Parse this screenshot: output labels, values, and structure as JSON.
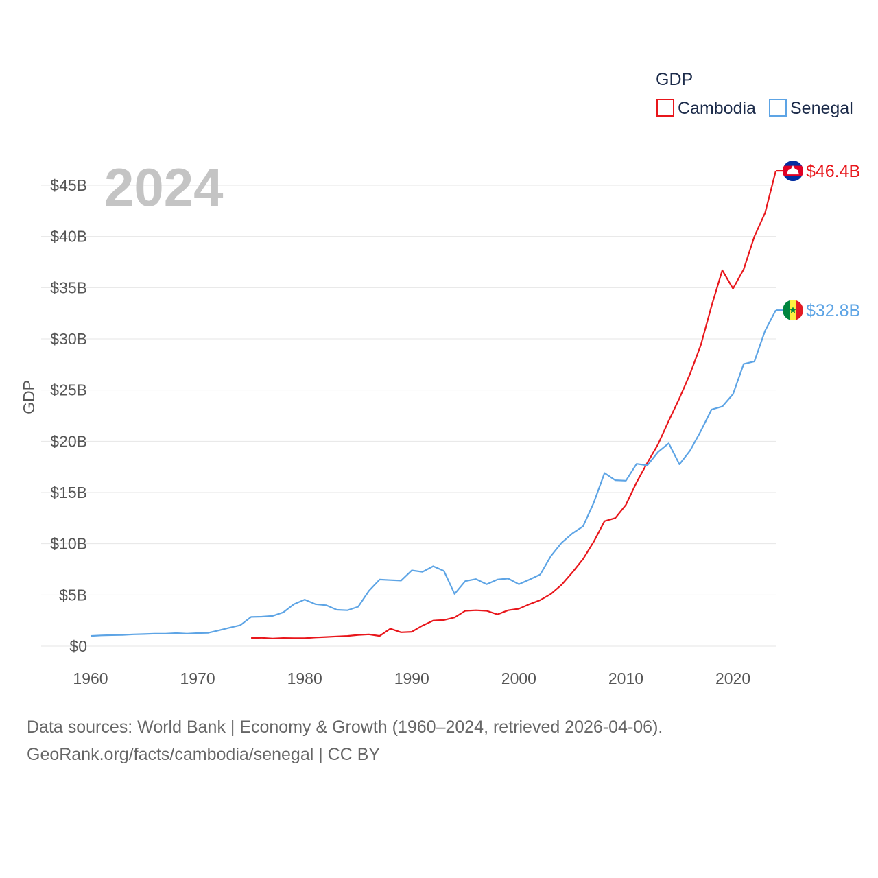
{
  "chart_data": {
    "type": "line",
    "year_label": "2024",
    "ylabel": "GDP",
    "ylim": [
      0,
      48
    ],
    "xlim": [
      1960,
      2024
    ],
    "y_ticks": [
      {
        "v": 0,
        "label": "$0"
      },
      {
        "v": 5,
        "label": "$5B"
      },
      {
        "v": 10,
        "label": "$10B"
      },
      {
        "v": 15,
        "label": "$15B"
      },
      {
        "v": 20,
        "label": "$20B"
      },
      {
        "v": 25,
        "label": "$25B"
      },
      {
        "v": 30,
        "label": "$30B"
      },
      {
        "v": 35,
        "label": "$35B"
      },
      {
        "v": 40,
        "label": "$40B"
      },
      {
        "v": 45,
        "label": "$45B"
      }
    ],
    "x_ticks": [
      {
        "v": 1960,
        "label": "1960"
      },
      {
        "v": 1970,
        "label": "1970"
      },
      {
        "v": 1980,
        "label": "1980"
      },
      {
        "v": 1990,
        "label": "1990"
      },
      {
        "v": 2000,
        "label": "2000"
      },
      {
        "v": 2010,
        "label": "2010"
      },
      {
        "v": 2020,
        "label": "2020"
      }
    ],
    "legend": {
      "title": "GDP"
    },
    "series": [
      {
        "name": "Cambodia",
        "color": "#e8161b",
        "end_label": "$46.4B",
        "flag": "cambodia-flag-icon",
        "points": [
          [
            1975,
            0.8
          ],
          [
            1976,
            0.82
          ],
          [
            1977,
            0.75
          ],
          [
            1978,
            0.8
          ],
          [
            1979,
            0.78
          ],
          [
            1980,
            0.78
          ],
          [
            1981,
            0.85
          ],
          [
            1982,
            0.9
          ],
          [
            1983,
            0.95
          ],
          [
            1984,
            1.0
          ],
          [
            1985,
            1.1
          ],
          [
            1986,
            1.15
          ],
          [
            1987,
            1.0
          ],
          [
            1988,
            1.7
          ],
          [
            1989,
            1.35
          ],
          [
            1990,
            1.4
          ],
          [
            1991,
            2.0
          ],
          [
            1992,
            2.5
          ],
          [
            1993,
            2.55
          ],
          [
            1994,
            2.8
          ],
          [
            1995,
            3.45
          ],
          [
            1996,
            3.5
          ],
          [
            1997,
            3.45
          ],
          [
            1998,
            3.1
          ],
          [
            1999,
            3.5
          ],
          [
            2000,
            3.65
          ],
          [
            2001,
            4.1
          ],
          [
            2002,
            4.5
          ],
          [
            2003,
            5.1
          ],
          [
            2004,
            6.0
          ],
          [
            2005,
            7.2
          ],
          [
            2006,
            8.5
          ],
          [
            2007,
            10.2
          ],
          [
            2008,
            12.2
          ],
          [
            2009,
            12.5
          ],
          [
            2010,
            13.8
          ],
          [
            2011,
            16.0
          ],
          [
            2012,
            17.9
          ],
          [
            2013,
            19.7
          ],
          [
            2014,
            22.0
          ],
          [
            2015,
            24.2
          ],
          [
            2016,
            26.6
          ],
          [
            2017,
            29.4
          ],
          [
            2018,
            33.2
          ],
          [
            2019,
            36.7
          ],
          [
            2020,
            34.9
          ],
          [
            2021,
            36.8
          ],
          [
            2022,
            40.0
          ],
          [
            2023,
            42.3
          ],
          [
            2024,
            46.4
          ]
        ]
      },
      {
        "name": "Senegal",
        "color": "#5da4e5",
        "end_label": "$32.8B",
        "flag": "senegal-flag-icon",
        "points": [
          [
            1960,
            1.0
          ],
          [
            1961,
            1.05
          ],
          [
            1962,
            1.08
          ],
          [
            1963,
            1.1
          ],
          [
            1964,
            1.15
          ],
          [
            1965,
            1.18
          ],
          [
            1966,
            1.22
          ],
          [
            1967,
            1.22
          ],
          [
            1968,
            1.27
          ],
          [
            1969,
            1.22
          ],
          [
            1970,
            1.27
          ],
          [
            1971,
            1.3
          ],
          [
            1972,
            1.55
          ],
          [
            1973,
            1.8
          ],
          [
            1974,
            2.05
          ],
          [
            1975,
            2.85
          ],
          [
            1976,
            2.88
          ],
          [
            1977,
            2.95
          ],
          [
            1978,
            3.3
          ],
          [
            1979,
            4.1
          ],
          [
            1980,
            4.55
          ],
          [
            1981,
            4.1
          ],
          [
            1982,
            4.0
          ],
          [
            1983,
            3.55
          ],
          [
            1984,
            3.5
          ],
          [
            1985,
            3.85
          ],
          [
            1986,
            5.4
          ],
          [
            1987,
            6.5
          ],
          [
            1988,
            6.45
          ],
          [
            1989,
            6.4
          ],
          [
            1990,
            7.4
          ],
          [
            1991,
            7.25
          ],
          [
            1992,
            7.8
          ],
          [
            1993,
            7.35
          ],
          [
            1994,
            5.1
          ],
          [
            1995,
            6.35
          ],
          [
            1996,
            6.55
          ],
          [
            1997,
            6.05
          ],
          [
            1998,
            6.5
          ],
          [
            1999,
            6.6
          ],
          [
            2000,
            6.05
          ],
          [
            2001,
            6.5
          ],
          [
            2002,
            7.0
          ],
          [
            2003,
            8.8
          ],
          [
            2004,
            10.1
          ],
          [
            2005,
            11.0
          ],
          [
            2006,
            11.7
          ],
          [
            2007,
            14.0
          ],
          [
            2008,
            16.9
          ],
          [
            2009,
            16.2
          ],
          [
            2010,
            16.15
          ],
          [
            2011,
            17.8
          ],
          [
            2012,
            17.65
          ],
          [
            2013,
            18.95
          ],
          [
            2014,
            19.8
          ],
          [
            2015,
            17.75
          ],
          [
            2016,
            19.1
          ],
          [
            2017,
            21.0
          ],
          [
            2018,
            23.1
          ],
          [
            2019,
            23.4
          ],
          [
            2020,
            24.6
          ],
          [
            2021,
            27.55
          ],
          [
            2022,
            27.8
          ],
          [
            2023,
            30.8
          ],
          [
            2024,
            32.8
          ]
        ]
      }
    ]
  },
  "source": {
    "line1": "Data sources: World Bank | Economy & Growth (1960–2024, retrieved 2026-04-06).",
    "line2": "GeoRank.org/facts/cambodia/senegal | CC BY"
  }
}
